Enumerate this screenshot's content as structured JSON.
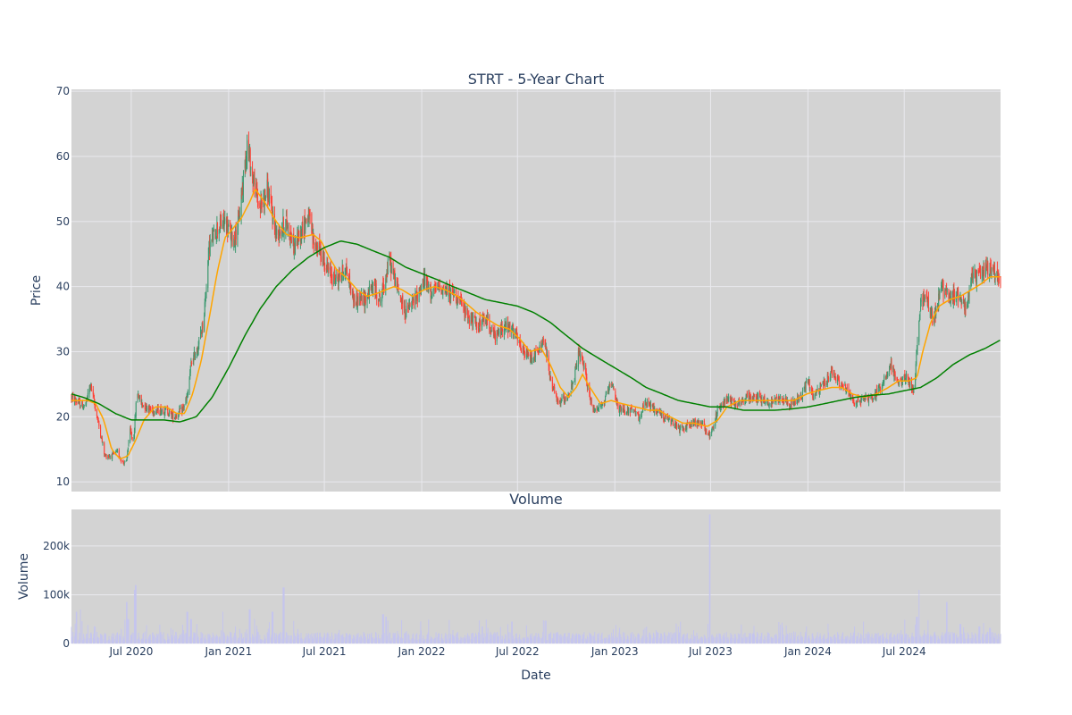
{
  "colors": {
    "background": "#ffffff",
    "plot_bg": "#d3d3d3",
    "grid": "#e9e9ee",
    "text": "#2a3f5f",
    "increasing": "#3d9970",
    "decreasing": "#ff4136",
    "ma_short": "#ffa500",
    "ma_long": "#008000",
    "volume_bar": "#c5c5ee"
  },
  "chart_data": [
    {
      "type": "candlestick",
      "title": "STRT - 5-Year Chart",
      "ylabel": "Price",
      "ylim": [
        8.5,
        70.3
      ],
      "xlim": [
        "2020-03-10",
        "2024-12-30"
      ],
      "y_ticks": [
        10,
        20,
        30,
        40,
        50,
        60,
        70
      ],
      "x_ticks": [
        "2020-07-01",
        "2021-01-01",
        "2021-07-01",
        "2022-01-01",
        "2022-07-01",
        "2023-01-01",
        "2023-07-01",
        "2024-01-01",
        "2024-07-01"
      ],
      "grid": true,
      "price_keyframes": [
        [
          "2020-03-10",
          23.0
        ],
        [
          "2020-03-25",
          22.0
        ],
        [
          "2020-04-05",
          21.5
        ],
        [
          "2020-04-15",
          25.0
        ],
        [
          "2020-04-25",
          21.0
        ],
        [
          "2020-05-05",
          17.0
        ],
        [
          "2020-05-12",
          14.0
        ],
        [
          "2020-05-25",
          14.0
        ],
        [
          "2020-06-05",
          14.5
        ],
        [
          "2020-06-15",
          13.0
        ],
        [
          "2020-06-22",
          13.0
        ],
        [
          "2020-06-28",
          18.0
        ],
        [
          "2020-07-05",
          16.0
        ],
        [
          "2020-07-12",
          24.0
        ],
        [
          "2020-07-20",
          22.0
        ],
        [
          "2020-08-10",
          21.0
        ],
        [
          "2020-08-25",
          21.0
        ],
        [
          "2020-09-05",
          21.0
        ],
        [
          "2020-09-20",
          20.0
        ],
        [
          "2020-10-05",
          21.0
        ],
        [
          "2020-10-15",
          23.0
        ],
        [
          "2020-10-22",
          28.0
        ],
        [
          "2020-11-05",
          31.0
        ],
        [
          "2020-11-15",
          35.0
        ],
        [
          "2020-11-25",
          46.0
        ],
        [
          "2020-12-10",
          49.0
        ],
        [
          "2020-12-25",
          50.0
        ],
        [
          "2021-01-10",
          47.0
        ],
        [
          "2021-01-20",
          50.0
        ],
        [
          "2021-02-05",
          62.0
        ],
        [
          "2021-02-15",
          57.0
        ],
        [
          "2021-03-01",
          52.0
        ],
        [
          "2021-03-15",
          55.0
        ],
        [
          "2021-04-01",
          48.0
        ],
        [
          "2021-04-20",
          50.0
        ],
        [
          "2021-05-05",
          46.0
        ],
        [
          "2021-05-20",
          49.0
        ],
        [
          "2021-06-01",
          51.0
        ],
        [
          "2021-06-10",
          47.0
        ],
        [
          "2021-06-25",
          45.0
        ],
        [
          "2021-07-10",
          42.0
        ],
        [
          "2021-07-25",
          41.0
        ],
        [
          "2021-08-10",
          43.0
        ],
        [
          "2021-08-25",
          38.0
        ],
        [
          "2021-09-15",
          38.0
        ],
        [
          "2021-10-01",
          40.0
        ],
        [
          "2021-10-15",
          38.0
        ],
        [
          "2021-11-01",
          44.0
        ],
        [
          "2021-11-15",
          40.0
        ],
        [
          "2021-12-01",
          36.0
        ],
        [
          "2021-12-20",
          38.0
        ],
        [
          "2022-01-05",
          41.0
        ],
        [
          "2022-01-20",
          39.0
        ],
        [
          "2022-02-05",
          40.0
        ],
        [
          "2022-02-20",
          39.0
        ],
        [
          "2022-03-05",
          39.0
        ],
        [
          "2022-03-25",
          36.0
        ],
        [
          "2022-04-15",
          34.0
        ],
        [
          "2022-05-05",
          35.0
        ],
        [
          "2022-05-20",
          32.0
        ],
        [
          "2022-06-05",
          34.0
        ],
        [
          "2022-06-25",
          33.0
        ],
        [
          "2022-07-10",
          30.0
        ],
        [
          "2022-07-25",
          29.0
        ],
        [
          "2022-08-10",
          30.0
        ],
        [
          "2022-08-20",
          32.0
        ],
        [
          "2022-09-01",
          26.0
        ],
        [
          "2022-09-15",
          22.0
        ],
        [
          "2022-10-01",
          23.0
        ],
        [
          "2022-10-15",
          25.0
        ],
        [
          "2022-10-25",
          30.0
        ],
        [
          "2022-11-05",
          27.0
        ],
        [
          "2022-11-20",
          21.0
        ],
        [
          "2022-12-10",
          22.0
        ],
        [
          "2022-12-25",
          25.0
        ],
        [
          "2023-01-10",
          21.0
        ],
        [
          "2023-02-01",
          21.0
        ],
        [
          "2023-02-15",
          20.0
        ],
        [
          "2023-03-01",
          22.0
        ],
        [
          "2023-03-20",
          21.0
        ],
        [
          "2023-04-05",
          20.0
        ],
        [
          "2023-04-20",
          19.0
        ],
        [
          "2023-05-05",
          18.0
        ],
        [
          "2023-05-25",
          19.0
        ],
        [
          "2023-06-15",
          19.0
        ],
        [
          "2023-06-30",
          17.0
        ],
        [
          "2023-07-15",
          21.0
        ],
        [
          "2023-08-01",
          23.0
        ],
        [
          "2023-08-20",
          22.0
        ],
        [
          "2023-09-10",
          23.0
        ],
        [
          "2023-10-01",
          23.0
        ],
        [
          "2023-10-20",
          22.0
        ],
        [
          "2023-11-10",
          23.0
        ],
        [
          "2023-12-01",
          22.0
        ],
        [
          "2023-12-20",
          23.0
        ],
        [
          "2024-01-01",
          26.0
        ],
        [
          "2024-01-10",
          23.0
        ],
        [
          "2024-02-01",
          25.0
        ],
        [
          "2024-02-15",
          27.0
        ],
        [
          "2024-03-01",
          25.0
        ],
        [
          "2024-03-15",
          24.0
        ],
        [
          "2024-04-01",
          22.0
        ],
        [
          "2024-04-15",
          23.0
        ],
        [
          "2024-05-05",
          23.0
        ],
        [
          "2024-05-20",
          25.0
        ],
        [
          "2024-06-05",
          28.0
        ],
        [
          "2024-06-20",
          25.0
        ],
        [
          "2024-07-05",
          26.0
        ],
        [
          "2024-07-20",
          24.0
        ],
        [
          "2024-07-25",
          30.0
        ],
        [
          "2024-08-01",
          38.0
        ],
        [
          "2024-08-12",
          38.0
        ],
        [
          "2024-08-25",
          35.0
        ],
        [
          "2024-09-10",
          40.0
        ],
        [
          "2024-09-25",
          38.0
        ],
        [
          "2024-10-10",
          39.0
        ],
        [
          "2024-10-25",
          37.0
        ],
        [
          "2024-11-05",
          41.0
        ],
        [
          "2024-11-20",
          42.0
        ],
        [
          "2024-12-05",
          43.0
        ],
        [
          "2024-12-30",
          41.0
        ]
      ],
      "ma_short_keyframes": [
        [
          "2020-03-10",
          22.5
        ],
        [
          "2020-04-10",
          22.5
        ],
        [
          "2020-04-25",
          22.0
        ],
        [
          "2020-05-10",
          19.5
        ],
        [
          "2020-05-25",
          15.0
        ],
        [
          "2020-06-10",
          13.5
        ],
        [
          "2020-06-25",
          14.0
        ],
        [
          "2020-07-10",
          16.5
        ],
        [
          "2020-07-25",
          19.5
        ],
        [
          "2020-08-15",
          21.5
        ],
        [
          "2020-09-05",
          21.5
        ],
        [
          "2020-09-25",
          20.5
        ],
        [
          "2020-10-10",
          20.5
        ],
        [
          "2020-10-25",
          23.5
        ],
        [
          "2020-11-10",
          28.5
        ],
        [
          "2020-11-25",
          35.0
        ],
        [
          "2020-12-10",
          42.0
        ],
        [
          "2020-12-25",
          47.5
        ],
        [
          "2021-01-10",
          49.0
        ],
        [
          "2021-01-25",
          50.5
        ],
        [
          "2021-02-10",
          53.0
        ],
        [
          "2021-02-20",
          55.0
        ],
        [
          "2021-03-10",
          53.0
        ],
        [
          "2021-04-01",
          50.0
        ],
        [
          "2021-04-20",
          48.0
        ],
        [
          "2021-05-15",
          47.5
        ],
        [
          "2021-06-10",
          48.0
        ],
        [
          "2021-06-25",
          47.0
        ],
        [
          "2021-07-10",
          44.5
        ],
        [
          "2021-07-25",
          42.5
        ],
        [
          "2021-08-10",
          41.5
        ],
        [
          "2021-09-01",
          39.5
        ],
        [
          "2021-09-20",
          38.5
        ],
        [
          "2021-10-10",
          39.0
        ],
        [
          "2021-10-25",
          39.5
        ],
        [
          "2021-11-10",
          40.0
        ],
        [
          "2021-11-25",
          39.5
        ],
        [
          "2021-12-15",
          38.5
        ],
        [
          "2022-01-05",
          39.5
        ],
        [
          "2022-01-25",
          40.0
        ],
        [
          "2022-02-15",
          39.5
        ],
        [
          "2022-03-10",
          38.5
        ],
        [
          "2022-03-25",
          37.5
        ],
        [
          "2022-04-15",
          36.0
        ],
        [
          "2022-05-05",
          35.0
        ],
        [
          "2022-05-25",
          34.0
        ],
        [
          "2022-06-15",
          33.5
        ],
        [
          "2022-07-05",
          32.0
        ],
        [
          "2022-07-25",
          30.0
        ],
        [
          "2022-08-15",
          30.5
        ],
        [
          "2022-09-01",
          28.0
        ],
        [
          "2022-09-20",
          24.5
        ],
        [
          "2022-10-05",
          23.0
        ],
        [
          "2022-10-20",
          24.5
        ],
        [
          "2022-11-01",
          26.5
        ],
        [
          "2022-11-15",
          24.5
        ],
        [
          "2022-12-05",
          22.0
        ],
        [
          "2022-12-25",
          22.5
        ],
        [
          "2023-01-15",
          22.0
        ],
        [
          "2023-02-10",
          21.5
        ],
        [
          "2023-03-05",
          21.0
        ],
        [
          "2023-03-25",
          21.0
        ],
        [
          "2023-04-15",
          20.0
        ],
        [
          "2023-05-10",
          19.0
        ],
        [
          "2023-06-01",
          19.0
        ],
        [
          "2023-06-25",
          18.5
        ],
        [
          "2023-07-15",
          19.5
        ],
        [
          "2023-08-01",
          21.5
        ],
        [
          "2023-08-25",
          22.5
        ],
        [
          "2023-09-20",
          22.5
        ],
        [
          "2023-10-15",
          22.5
        ],
        [
          "2023-11-10",
          22.5
        ],
        [
          "2023-12-05",
          22.5
        ],
        [
          "2023-12-30",
          23.5
        ],
        [
          "2024-01-20",
          24.0
        ],
        [
          "2024-02-15",
          24.5
        ],
        [
          "2024-03-05",
          24.5
        ],
        [
          "2024-03-25",
          23.5
        ],
        [
          "2024-04-15",
          23.0
        ],
        [
          "2024-05-10",
          23.5
        ],
        [
          "2024-06-01",
          24.5
        ],
        [
          "2024-06-20",
          25.5
        ],
        [
          "2024-07-10",
          25.5
        ],
        [
          "2024-07-25",
          26.0
        ],
        [
          "2024-08-05",
          30.0
        ],
        [
          "2024-08-20",
          34.5
        ],
        [
          "2024-09-05",
          37.0
        ],
        [
          "2024-09-25",
          38.0
        ],
        [
          "2024-10-15",
          38.5
        ],
        [
          "2024-11-05",
          39.5
        ],
        [
          "2024-11-25",
          40.5
        ],
        [
          "2024-12-10",
          41.5
        ],
        [
          "2024-12-30",
          41.5
        ]
      ],
      "ma_long_keyframes": [
        [
          "2020-03-10",
          23.5
        ],
        [
          "2020-04-01",
          23.0
        ],
        [
          "2020-05-01",
          22.0
        ],
        [
          "2020-06-01",
          20.5
        ],
        [
          "2020-07-01",
          19.5
        ],
        [
          "2020-08-01",
          19.5
        ],
        [
          "2020-09-01",
          19.5
        ],
        [
          "2020-10-01",
          19.2
        ],
        [
          "2020-11-01",
          20.0
        ],
        [
          "2020-12-01",
          23.0
        ],
        [
          "2021-01-01",
          27.5
        ],
        [
          "2021-02-01",
          32.5
        ],
        [
          "2021-03-01",
          36.5
        ],
        [
          "2021-04-01",
          40.0
        ],
        [
          "2021-05-01",
          42.5
        ],
        [
          "2021-06-01",
          44.5
        ],
        [
          "2021-07-01",
          46.0
        ],
        [
          "2021-08-01",
          47.0
        ],
        [
          "2021-09-01",
          46.5
        ],
        [
          "2021-10-01",
          45.5
        ],
        [
          "2021-11-01",
          44.5
        ],
        [
          "2021-12-01",
          43.0
        ],
        [
          "2022-01-01",
          42.0
        ],
        [
          "2022-02-01",
          41.0
        ],
        [
          "2022-03-01",
          40.0
        ],
        [
          "2022-04-01",
          39.0
        ],
        [
          "2022-05-01",
          38.0
        ],
        [
          "2022-06-01",
          37.5
        ],
        [
          "2022-07-01",
          37.0
        ],
        [
          "2022-08-01",
          36.0
        ],
        [
          "2022-09-01",
          34.5
        ],
        [
          "2022-10-01",
          32.5
        ],
        [
          "2022-11-01",
          30.5
        ],
        [
          "2022-12-01",
          29.0
        ],
        [
          "2023-01-01",
          27.5
        ],
        [
          "2023-02-01",
          26.0
        ],
        [
          "2023-03-01",
          24.5
        ],
        [
          "2023-04-01",
          23.5
        ],
        [
          "2023-05-01",
          22.5
        ],
        [
          "2023-06-01",
          22.0
        ],
        [
          "2023-07-01",
          21.5
        ],
        [
          "2023-08-01",
          21.5
        ],
        [
          "2023-09-01",
          21.0
        ],
        [
          "2023-10-01",
          21.0
        ],
        [
          "2023-11-01",
          21.0
        ],
        [
          "2023-12-01",
          21.2
        ],
        [
          "2024-01-01",
          21.5
        ],
        [
          "2024-02-01",
          22.0
        ],
        [
          "2024-03-01",
          22.5
        ],
        [
          "2024-04-01",
          23.0
        ],
        [
          "2024-05-01",
          23.3
        ],
        [
          "2024-06-01",
          23.5
        ],
        [
          "2024-07-01",
          24.0
        ],
        [
          "2024-08-01",
          24.5
        ],
        [
          "2024-09-01",
          26.0
        ],
        [
          "2024-10-01",
          28.0
        ],
        [
          "2024-11-01",
          29.5
        ],
        [
          "2024-12-01",
          30.5
        ],
        [
          "2024-12-30",
          31.8
        ]
      ]
    },
    {
      "type": "bar",
      "title": "Volume",
      "xlabel": "Date",
      "ylabel": "Volume",
      "ylim": [
        0,
        275000
      ],
      "y_ticks": [
        0,
        100000,
        200000
      ],
      "y_tick_labels": [
        "0",
        "100k",
        "200k"
      ],
      "x_ticks": [
        "2020-07-01",
        "2021-01-01",
        "2021-07-01",
        "2022-01-01",
        "2022-07-01",
        "2023-01-01",
        "2023-07-01",
        "2024-01-01",
        "2024-07-01"
      ],
      "x_tick_labels": [
        "Jul 2020",
        "Jan 2021",
        "Jul 2021",
        "Jan 2022",
        "Jul 2022",
        "Jan 2023",
        "Jul 2023",
        "Jan 2024",
        "Jul 2024"
      ],
      "grid": true,
      "spikes": [
        [
          "2020-03-20",
          65000
        ],
        [
          "2020-03-28",
          70000
        ],
        [
          "2020-06-22",
          85000
        ],
        [
          "2020-06-25",
          50000
        ],
        [
          "2020-07-08",
          110000
        ],
        [
          "2020-07-10",
          120000
        ],
        [
          "2020-10-15",
          65000
        ],
        [
          "2020-10-22",
          50000
        ],
        [
          "2020-12-20",
          65000
        ],
        [
          "2021-02-10",
          70000
        ],
        [
          "2021-02-20",
          50000
        ],
        [
          "2021-03-25",
          65000
        ],
        [
          "2021-04-15",
          115000
        ],
        [
          "2021-10-20",
          60000
        ],
        [
          "2021-10-25",
          55000
        ],
        [
          "2022-04-25",
          35000
        ],
        [
          "2022-06-20",
          45000
        ],
        [
          "2023-06-30",
          265000
        ],
        [
          "2023-12-30",
          35000
        ],
        [
          "2024-07-28",
          110000
        ],
        [
          "2024-07-25",
          55000
        ],
        [
          "2024-09-20",
          85000
        ],
        [
          "2024-10-15",
          40000
        ],
        [
          "2024-11-20",
          35000
        ],
        [
          "2024-12-10",
          32000
        ]
      ]
    }
  ],
  "labels": {
    "price_title": "STRT - 5-Year Chart",
    "volume_title": "Volume",
    "price_ylabel": "Price",
    "volume_ylabel": "Volume",
    "xlabel": "Date"
  }
}
